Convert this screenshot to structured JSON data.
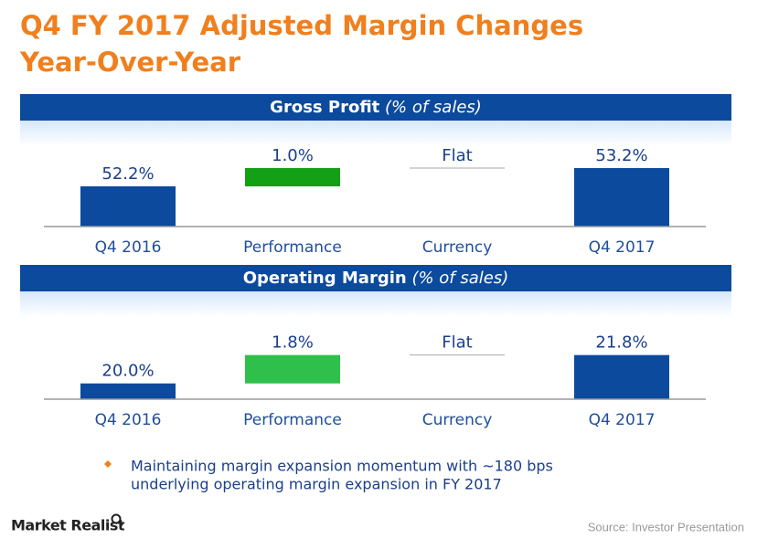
{
  "title": [
    "Q4 FY 2017 Adjusted Margin Changes",
    "Year-Over-Year"
  ],
  "chart_data": [
    {
      "type": "waterfall",
      "title": "Gross Profit",
      "subtitle": "(% of sales)",
      "categories": [
        "Q4 2016",
        "Performance",
        "Currency",
        "Q4 2017"
      ],
      "values": [
        52.2,
        1.0,
        0,
        53.2
      ],
      "value_labels": [
        "52.2%",
        "1.0%",
        "Flat",
        "53.2%"
      ],
      "measure": [
        "absolute",
        "relative",
        "relative",
        "absolute"
      ],
      "colors": [
        "#0b4a9c",
        "#13a015",
        "#aaaaaa",
        "#0b4a9c"
      ],
      "ylim": [
        50,
        55.4
      ]
    },
    {
      "type": "waterfall",
      "title": "Operating Margin",
      "subtitle": "(% of sales)",
      "categories": [
        "Q4 2016",
        "Performance",
        "Currency",
        "Q4 2017"
      ],
      "values": [
        20.0,
        1.8,
        0,
        21.8
      ],
      "value_labels": [
        "20.0%",
        "1.8%",
        "Flat",
        "21.8%"
      ],
      "measure": [
        "absolute",
        "relative",
        "relative",
        "absolute"
      ],
      "colors": [
        "#0b4a9c",
        "#2ec04a",
        "#aaaaaa",
        "#0b4a9c"
      ],
      "ylim": [
        19,
        25.2
      ]
    }
  ],
  "bullet": [
    "Maintaining margin expansion momentum with ~180 bps",
    "underlying operating margin expansion in FY 2017"
  ],
  "logo": "Market Realist",
  "source": "Source: Investor Presentation"
}
